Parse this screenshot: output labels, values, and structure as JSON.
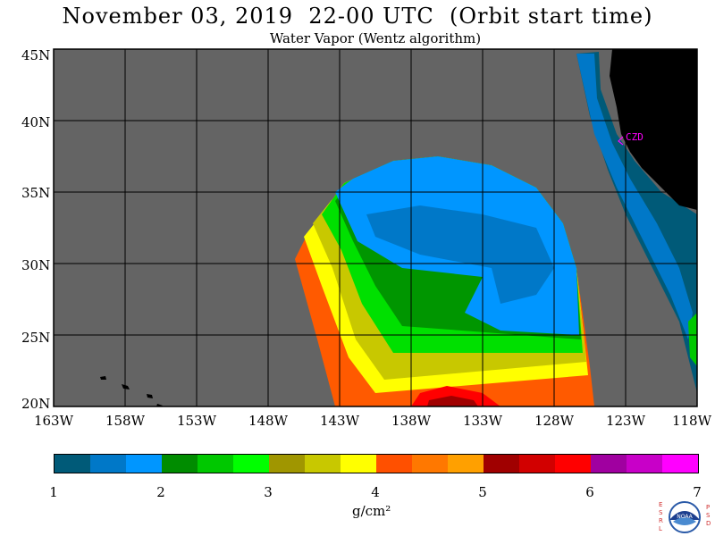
{
  "header": {
    "title": "November 03, 2019  22-00 UTC  (Orbit start time)",
    "subtitle": "Water Vapor (Wentz algorithm)"
  },
  "map": {
    "lat_labels": [
      "45N",
      "40N",
      "35N",
      "30N",
      "25N",
      "20N"
    ],
    "lon_labels": [
      "163W",
      "158W",
      "153W",
      "148W",
      "143W",
      "138W",
      "133W",
      "128W",
      "123W",
      "118W"
    ],
    "station_label": "CZD",
    "colors": {
      "background": "#646464",
      "land": "#000000",
      "station": "#ff00ff"
    }
  },
  "colorbar": {
    "tick_labels": [
      "1",
      "2",
      "3",
      "4",
      "5",
      "6",
      "7"
    ],
    "unit_label": "g/cm²",
    "colors": [
      "#005a78",
      "#0078c8",
      "#0096ff",
      "#008c00",
      "#00c800",
      "#00ff00",
      "#a09600",
      "#c8c800",
      "#ffff00",
      "#ff5000",
      "#ff7800",
      "#ffa000",
      "#a00000",
      "#d20000",
      "#ff0000",
      "#a000a0",
      "#c800c8",
      "#ff00ff"
    ]
  },
  "logo": {
    "left_letters": "ESRL",
    "right_letters": "PSD",
    "center_text": "NOAA"
  }
}
